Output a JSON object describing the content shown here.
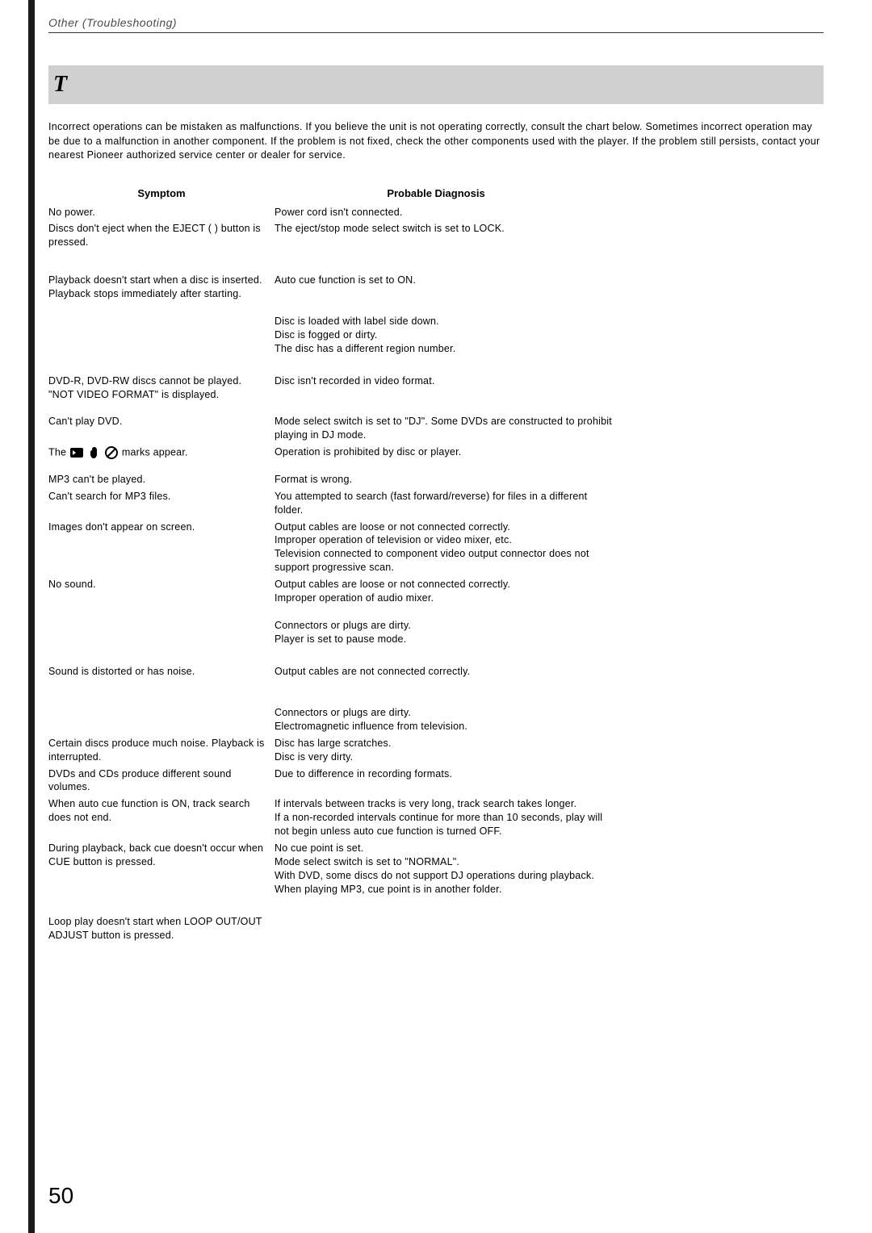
{
  "header": "Other (Troubleshooting)",
  "title_icon": "T",
  "intro": "Incorrect operations can be mistaken as malfunctions. If you believe the unit is not operating correctly, consult the chart below. Sometimes incorrect operation may be due to a malfunction in another component. If the problem is not fixed, check the other components used with the player. If the problem still persists, contact your nearest Pioneer authorized service center or dealer for service.",
  "columns": {
    "symptom": "Symptom",
    "diagnosis": "Probable Diagnosis"
  },
  "rows": [
    {
      "symptom": "No power.",
      "diagnosis": "Power cord isn't connected."
    },
    {
      "symptom": "Discs don't eject when the EJECT ( ) button is pressed.",
      "diagnosis": "The eject/stop mode select switch is set to LOCK."
    },
    {
      "symptom": "Playback doesn't start when a disc is inserted.\nPlayback stops immediately after starting.",
      "diagnosis": "Auto cue function is set to ON.\n\n\nDisc is loaded with label side down.\nDisc is fogged or dirty.\nThe disc has a different region number."
    },
    {
      "symptom": "DVD-R, DVD-RW discs cannot be played.\n\"NOT VIDEO FORMAT\" is displayed.",
      "diagnosis": "Disc isn't recorded in video format."
    },
    {
      "symptom": "Can't play DVD.",
      "diagnosis": "Mode select switch is set to \"DJ\". Some DVDs are constructed to prohibit playing in DJ mode."
    },
    {
      "symptom": "",
      "diagnosis": "Operation is prohibited by disc or player."
    },
    {
      "symptom": "MP3 can't be played.",
      "diagnosis": "Format is wrong."
    },
    {
      "symptom": "Can't search for MP3 files.",
      "diagnosis": "You attempted to search (fast forward/reverse) for files in a different folder."
    },
    {
      "symptom": "Images don't appear on screen.",
      "diagnosis": "Output cables are loose or not connected correctly.\nImproper operation of television or video mixer, etc.\nTelevision connected to component video output connector does not support progressive scan."
    },
    {
      "symptom": "No sound.",
      "diagnosis": "Output cables are loose or not connected correctly.\nImproper operation of audio mixer.\n\nConnectors or plugs are dirty.\nPlayer is set to pause mode."
    },
    {
      "symptom": "Sound is distorted or has noise.",
      "diagnosis": "Output cables are not connected correctly.\n\n\nConnectors or plugs are dirty.\nElectromagnetic influence from television."
    },
    {
      "symptom": "Certain discs produce much noise. Playback is interrupted.",
      "diagnosis": "Disc has large scratches.\nDisc is very dirty."
    },
    {
      "symptom": "DVDs and CDs produce different sound volumes.",
      "diagnosis": "Due to difference in recording formats."
    },
    {
      "symptom": "When auto cue function is ON, track search does not end.",
      "diagnosis": "If intervals between tracks is very long, track search takes longer.\nIf a non-recorded intervals continue for more than 10 seconds, play will not begin unless auto cue function is turned OFF."
    },
    {
      "symptom": "During playback, back cue doesn't occur when CUE button is pressed.",
      "diagnosis": "No cue point is set.\nMode select switch is set to \"NORMAL\".\nWith DVD, some discs do not support DJ operations during playback.\nWhen playing MP3, cue point is in another folder."
    },
    {
      "symptom": "Loop play doesn't start when LOOP OUT/OUT ADJUST button is pressed.",
      "diagnosis": ""
    }
  ],
  "marks_row_suffix": "  marks appear.",
  "page_number": "50",
  "colors": {
    "text": "#000000",
    "header_text": "#4a4a4a",
    "title_bg": "#d0d0d0",
    "margin_bar": "#1a1a1a",
    "background": "#ffffff"
  },
  "fonts": {
    "body_size": 12.5,
    "header_size": 14,
    "page_number_size": 28
  }
}
